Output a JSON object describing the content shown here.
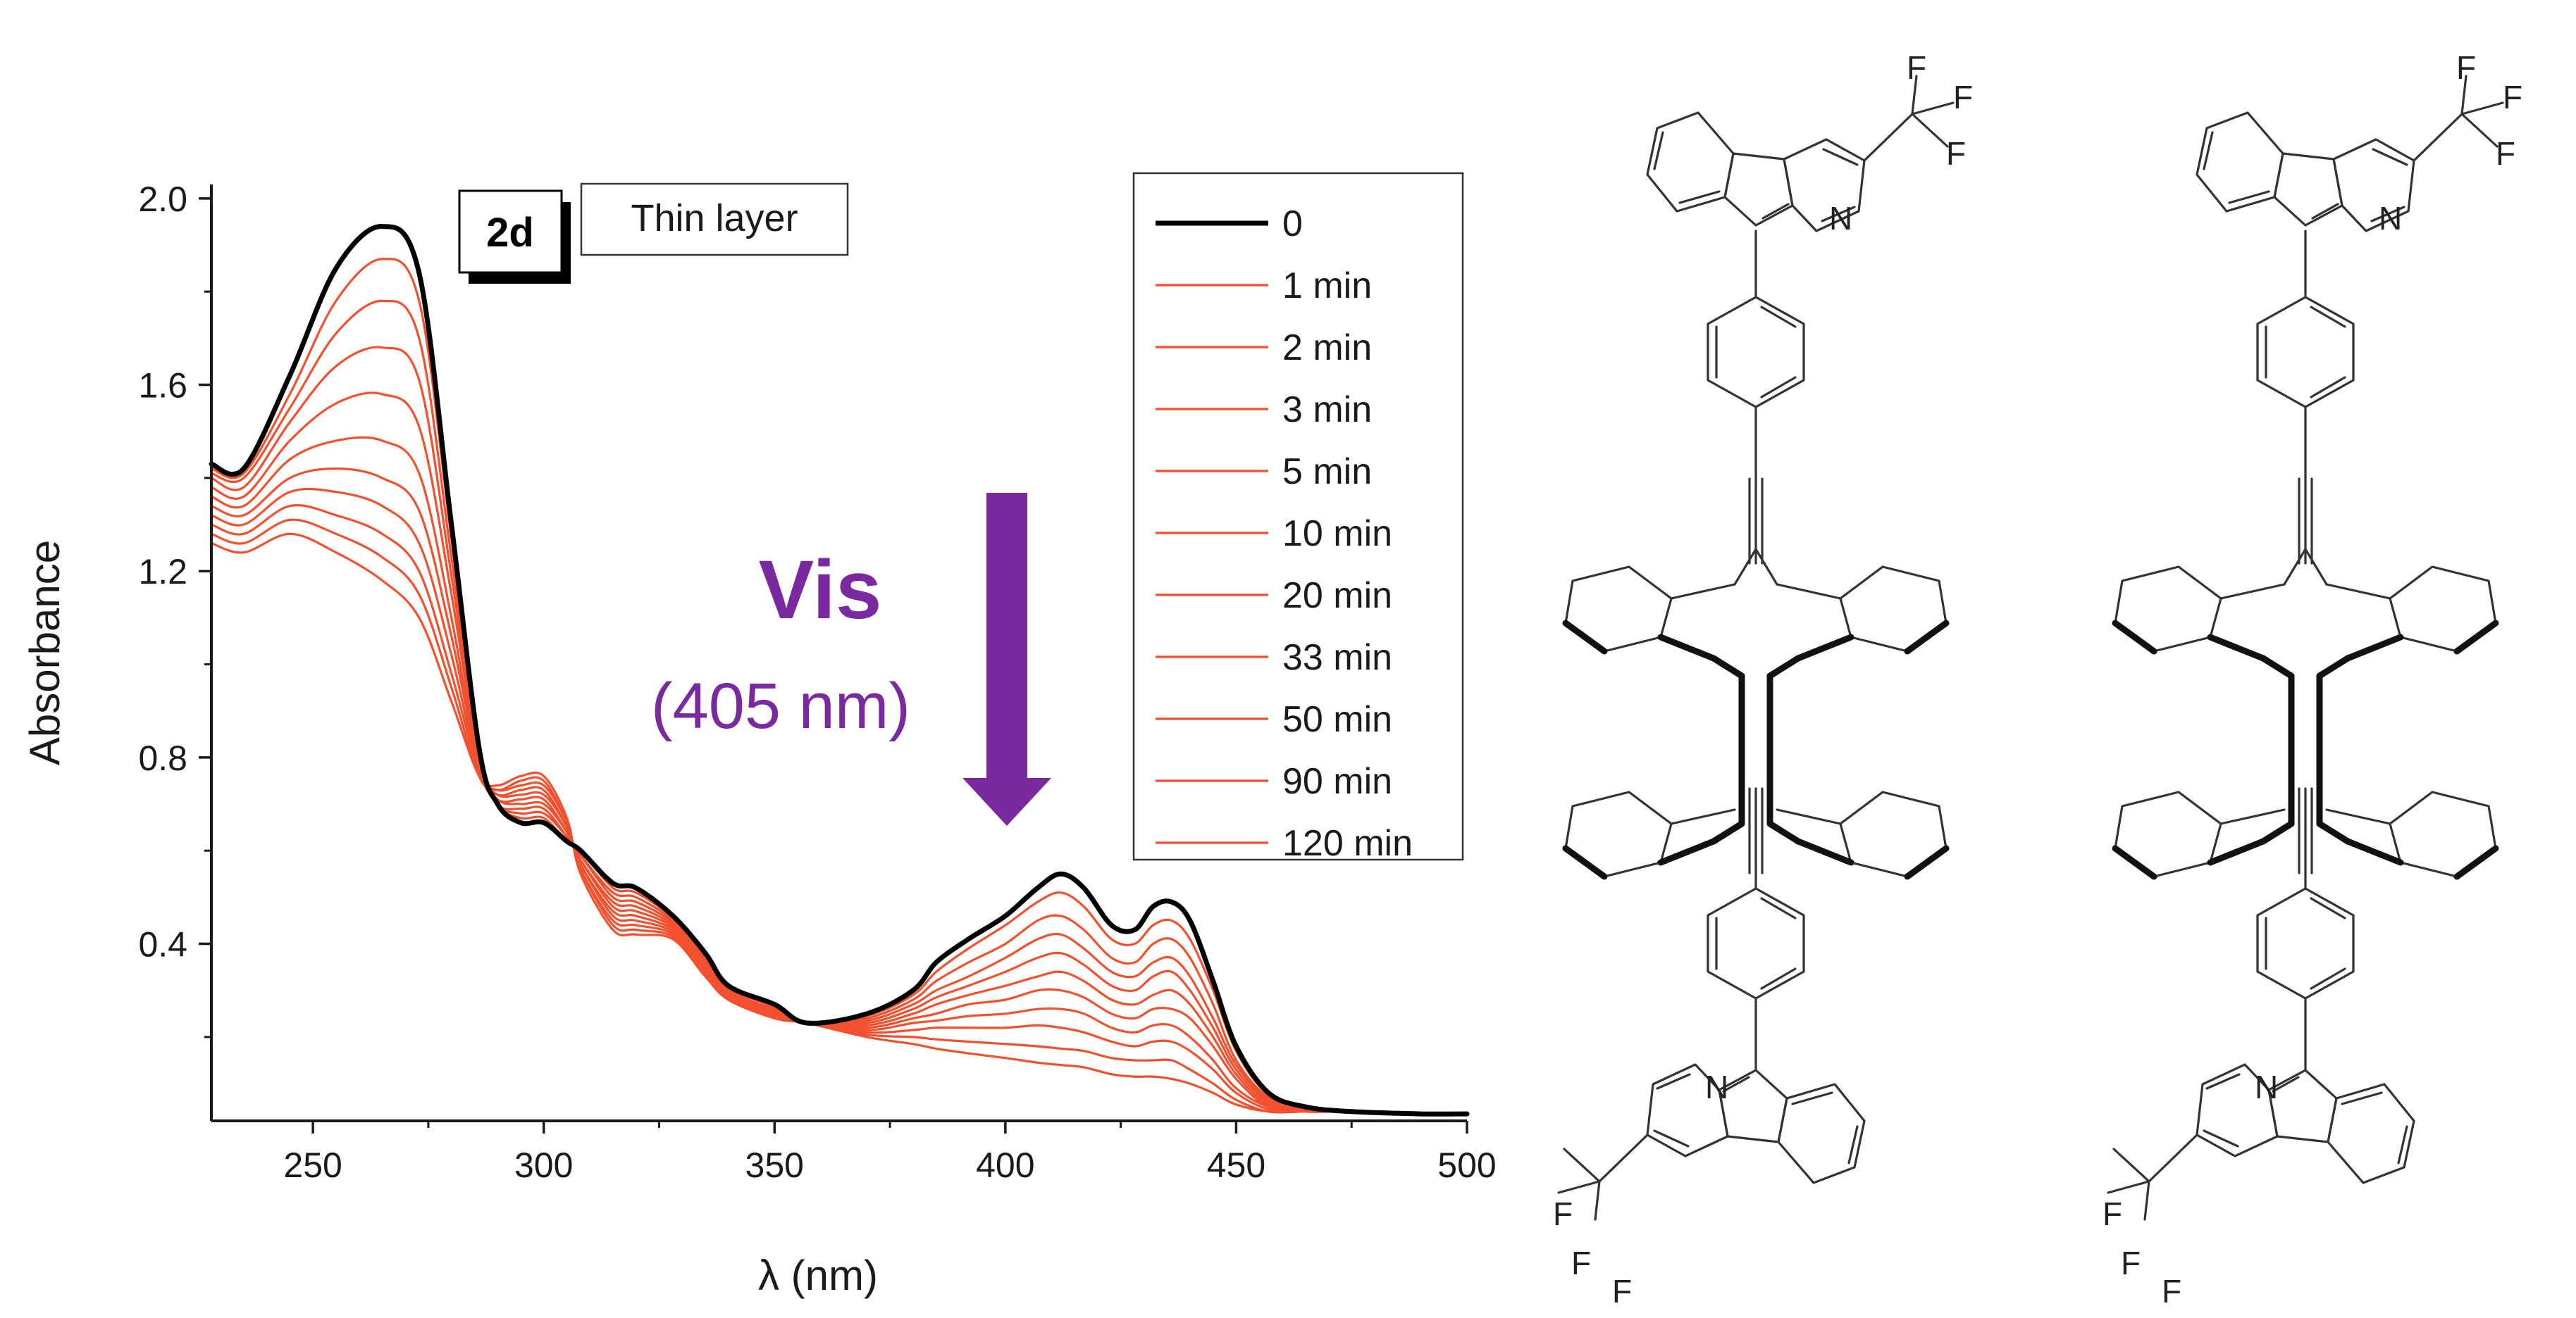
{
  "chart_data": {
    "type": "line",
    "title": "",
    "xlabel": "λ (nm)",
    "ylabel": "Absorbance",
    "xlim": [
      228,
      500
    ],
    "ylim": [
      0.02,
      2.03
    ],
    "xticks": [
      250,
      300,
      350,
      400,
      450,
      500
    ],
    "xtick_labels": [
      "250",
      "300",
      "350",
      "400",
      "450",
      "500"
    ],
    "yticks": [
      0.4,
      0.8,
      1.2,
      1.6,
      2.0
    ],
    "ytick_labels": [
      "0.4",
      "0.8",
      "1.2",
      "1.6",
      "2.0"
    ],
    "grid": false,
    "legend_position": "top-right",
    "sample_tag": "2d",
    "condition_label": "Thin layer",
    "annotation": {
      "text": "Vis",
      "subtext": "(405 nm)",
      "arrow": "down"
    },
    "colors": {
      "initial": "#000000",
      "irradiated": "#f2502e",
      "annotation": "#7a2aa0"
    },
    "keypoints_x": [
      228,
      235,
      245,
      255,
      265,
      273,
      280,
      286,
      290,
      295,
      300,
      305,
      308,
      315,
      320,
      328,
      335,
      340,
      350,
      357,
      370,
      380,
      385,
      392,
      400,
      407,
      412,
      417,
      423,
      428,
      432,
      436,
      440,
      445,
      450,
      457,
      465,
      475,
      490,
      500
    ],
    "series": [
      {
        "name": "0",
        "values": [
          1.43,
          1.42,
          1.62,
          1.85,
          1.94,
          1.84,
          1.3,
          0.82,
          0.7,
          0.66,
          0.66,
          0.62,
          0.6,
          0.53,
          0.52,
          0.46,
          0.38,
          0.31,
          0.27,
          0.23,
          0.25,
          0.3,
          0.36,
          0.41,
          0.46,
          0.52,
          0.55,
          0.52,
          0.44,
          0.43,
          0.48,
          0.49,
          0.45,
          0.32,
          0.18,
          0.08,
          0.05,
          0.04,
          0.035,
          0.035
        ]
      },
      {
        "name": "1 min",
        "values": [
          1.42,
          1.41,
          1.58,
          1.78,
          1.87,
          1.78,
          1.27,
          0.82,
          0.7,
          0.67,
          0.67,
          0.62,
          0.6,
          0.52,
          0.51,
          0.455,
          0.375,
          0.305,
          0.265,
          0.23,
          0.245,
          0.29,
          0.34,
          0.39,
          0.44,
          0.49,
          0.51,
          0.48,
          0.41,
          0.4,
          0.44,
          0.45,
          0.41,
          0.3,
          0.17,
          0.075,
          0.05,
          0.04,
          0.035,
          0.035
        ]
      },
      {
        "name": "2 min",
        "values": [
          1.41,
          1.4,
          1.55,
          1.71,
          1.78,
          1.7,
          1.23,
          0.81,
          0.7,
          0.68,
          0.68,
          0.63,
          0.59,
          0.51,
          0.5,
          0.45,
          0.37,
          0.3,
          0.26,
          0.23,
          0.24,
          0.28,
          0.32,
          0.36,
          0.4,
          0.45,
          0.46,
          0.43,
          0.37,
          0.36,
          0.4,
          0.41,
          0.37,
          0.27,
          0.15,
          0.07,
          0.05,
          0.04,
          0.035,
          0.035
        ]
      },
      {
        "name": "3 min",
        "values": [
          1.4,
          1.38,
          1.52,
          1.64,
          1.68,
          1.61,
          1.19,
          0.8,
          0.7,
          0.69,
          0.69,
          0.63,
          0.59,
          0.5,
          0.49,
          0.445,
          0.365,
          0.3,
          0.258,
          0.23,
          0.235,
          0.27,
          0.3,
          0.33,
          0.37,
          0.41,
          0.42,
          0.39,
          0.34,
          0.33,
          0.36,
          0.37,
          0.33,
          0.24,
          0.14,
          0.065,
          0.045,
          0.04,
          0.035,
          0.035
        ]
      },
      {
        "name": "5 min",
        "values": [
          1.38,
          1.36,
          1.48,
          1.56,
          1.58,
          1.51,
          1.15,
          0.79,
          0.71,
          0.7,
          0.7,
          0.64,
          0.58,
          0.49,
          0.48,
          0.44,
          0.36,
          0.3,
          0.255,
          0.23,
          0.23,
          0.26,
          0.285,
          0.31,
          0.34,
          0.37,
          0.38,
          0.355,
          0.31,
          0.3,
          0.33,
          0.34,
          0.3,
          0.22,
          0.13,
          0.06,
          0.045,
          0.04,
          0.035,
          0.035
        ]
      },
      {
        "name": "10 min",
        "values": [
          1.36,
          1.34,
          1.44,
          1.48,
          1.48,
          1.41,
          1.1,
          0.78,
          0.71,
          0.71,
          0.71,
          0.64,
          0.58,
          0.48,
          0.47,
          0.435,
          0.355,
          0.295,
          0.252,
          0.23,
          0.225,
          0.25,
          0.27,
          0.29,
          0.31,
          0.33,
          0.34,
          0.32,
          0.28,
          0.27,
          0.29,
          0.3,
          0.27,
          0.2,
          0.12,
          0.055,
          0.045,
          0.04,
          0.035,
          0.035
        ]
      },
      {
        "name": "20 min",
        "values": [
          1.34,
          1.32,
          1.4,
          1.42,
          1.4,
          1.33,
          1.06,
          0.78,
          0.72,
          0.72,
          0.72,
          0.65,
          0.57,
          0.47,
          0.46,
          0.43,
          0.35,
          0.29,
          0.25,
          0.23,
          0.22,
          0.24,
          0.25,
          0.27,
          0.28,
          0.3,
          0.3,
          0.285,
          0.25,
          0.24,
          0.26,
          0.26,
          0.24,
          0.18,
          0.11,
          0.05,
          0.04,
          0.04,
          0.035,
          0.035
        ]
      },
      {
        "name": "33 min",
        "values": [
          1.32,
          1.3,
          1.37,
          1.37,
          1.34,
          1.26,
          1.02,
          0.77,
          0.72,
          0.73,
          0.73,
          0.65,
          0.57,
          0.46,
          0.45,
          0.425,
          0.345,
          0.29,
          0.248,
          0.23,
          0.215,
          0.23,
          0.235,
          0.245,
          0.25,
          0.26,
          0.26,
          0.25,
          0.22,
          0.21,
          0.225,
          0.225,
          0.2,
          0.15,
          0.09,
          0.05,
          0.04,
          0.04,
          0.035,
          0.035
        ]
      },
      {
        "name": "50 min",
        "values": [
          1.3,
          1.28,
          1.34,
          1.32,
          1.28,
          1.2,
          0.98,
          0.77,
          0.73,
          0.74,
          0.74,
          0.66,
          0.56,
          0.45,
          0.44,
          0.42,
          0.34,
          0.285,
          0.245,
          0.23,
          0.21,
          0.215,
          0.22,
          0.22,
          0.22,
          0.225,
          0.22,
          0.21,
          0.19,
          0.18,
          0.19,
          0.19,
          0.17,
          0.13,
          0.08,
          0.045,
          0.04,
          0.04,
          0.035,
          0.035
        ]
      },
      {
        "name": "90 min",
        "values": [
          1.28,
          1.26,
          1.31,
          1.28,
          1.23,
          1.15,
          0.95,
          0.76,
          0.73,
          0.75,
          0.75,
          0.66,
          0.56,
          0.44,
          0.43,
          0.415,
          0.335,
          0.28,
          0.242,
          0.23,
          0.205,
          0.2,
          0.195,
          0.19,
          0.185,
          0.18,
          0.175,
          0.17,
          0.155,
          0.15,
          0.15,
          0.15,
          0.13,
          0.1,
          0.065,
          0.04,
          0.04,
          0.04,
          0.035,
          0.035
        ]
      },
      {
        "name": "120 min",
        "values": [
          1.26,
          1.24,
          1.28,
          1.24,
          1.18,
          1.1,
          0.92,
          0.76,
          0.74,
          0.76,
          0.76,
          0.67,
          0.55,
          0.43,
          0.42,
          0.41,
          0.33,
          0.28,
          0.24,
          0.23,
          0.2,
          0.185,
          0.175,
          0.165,
          0.155,
          0.145,
          0.14,
          0.135,
          0.12,
          0.115,
          0.115,
          0.11,
          0.1,
          0.08,
          0.055,
          0.04,
          0.04,
          0.04,
          0.035,
          0.035
        ]
      }
    ]
  },
  "structures": {
    "left": {
      "stereo": "wedge-dash",
      "atoms": {
        "top_n": "N",
        "bottom_n": "N",
        "fluorine": "F"
      }
    },
    "right": {
      "stereo": "plain",
      "atoms": {
        "top_n": "N",
        "bottom_n": "N",
        "fluorine": "F"
      }
    }
  }
}
